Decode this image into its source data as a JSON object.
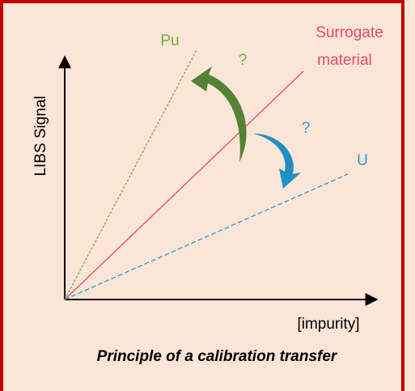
{
  "labels": {
    "pu": "Pu",
    "surrogate_line1": "Surrogate",
    "surrogate_line2": "material",
    "question_pu": "?",
    "question_u": "?",
    "u": "U",
    "y_axis": "LIBS Signal",
    "x_axis": "[impurity]"
  },
  "caption": "Principle of a calibration transfer"
}
